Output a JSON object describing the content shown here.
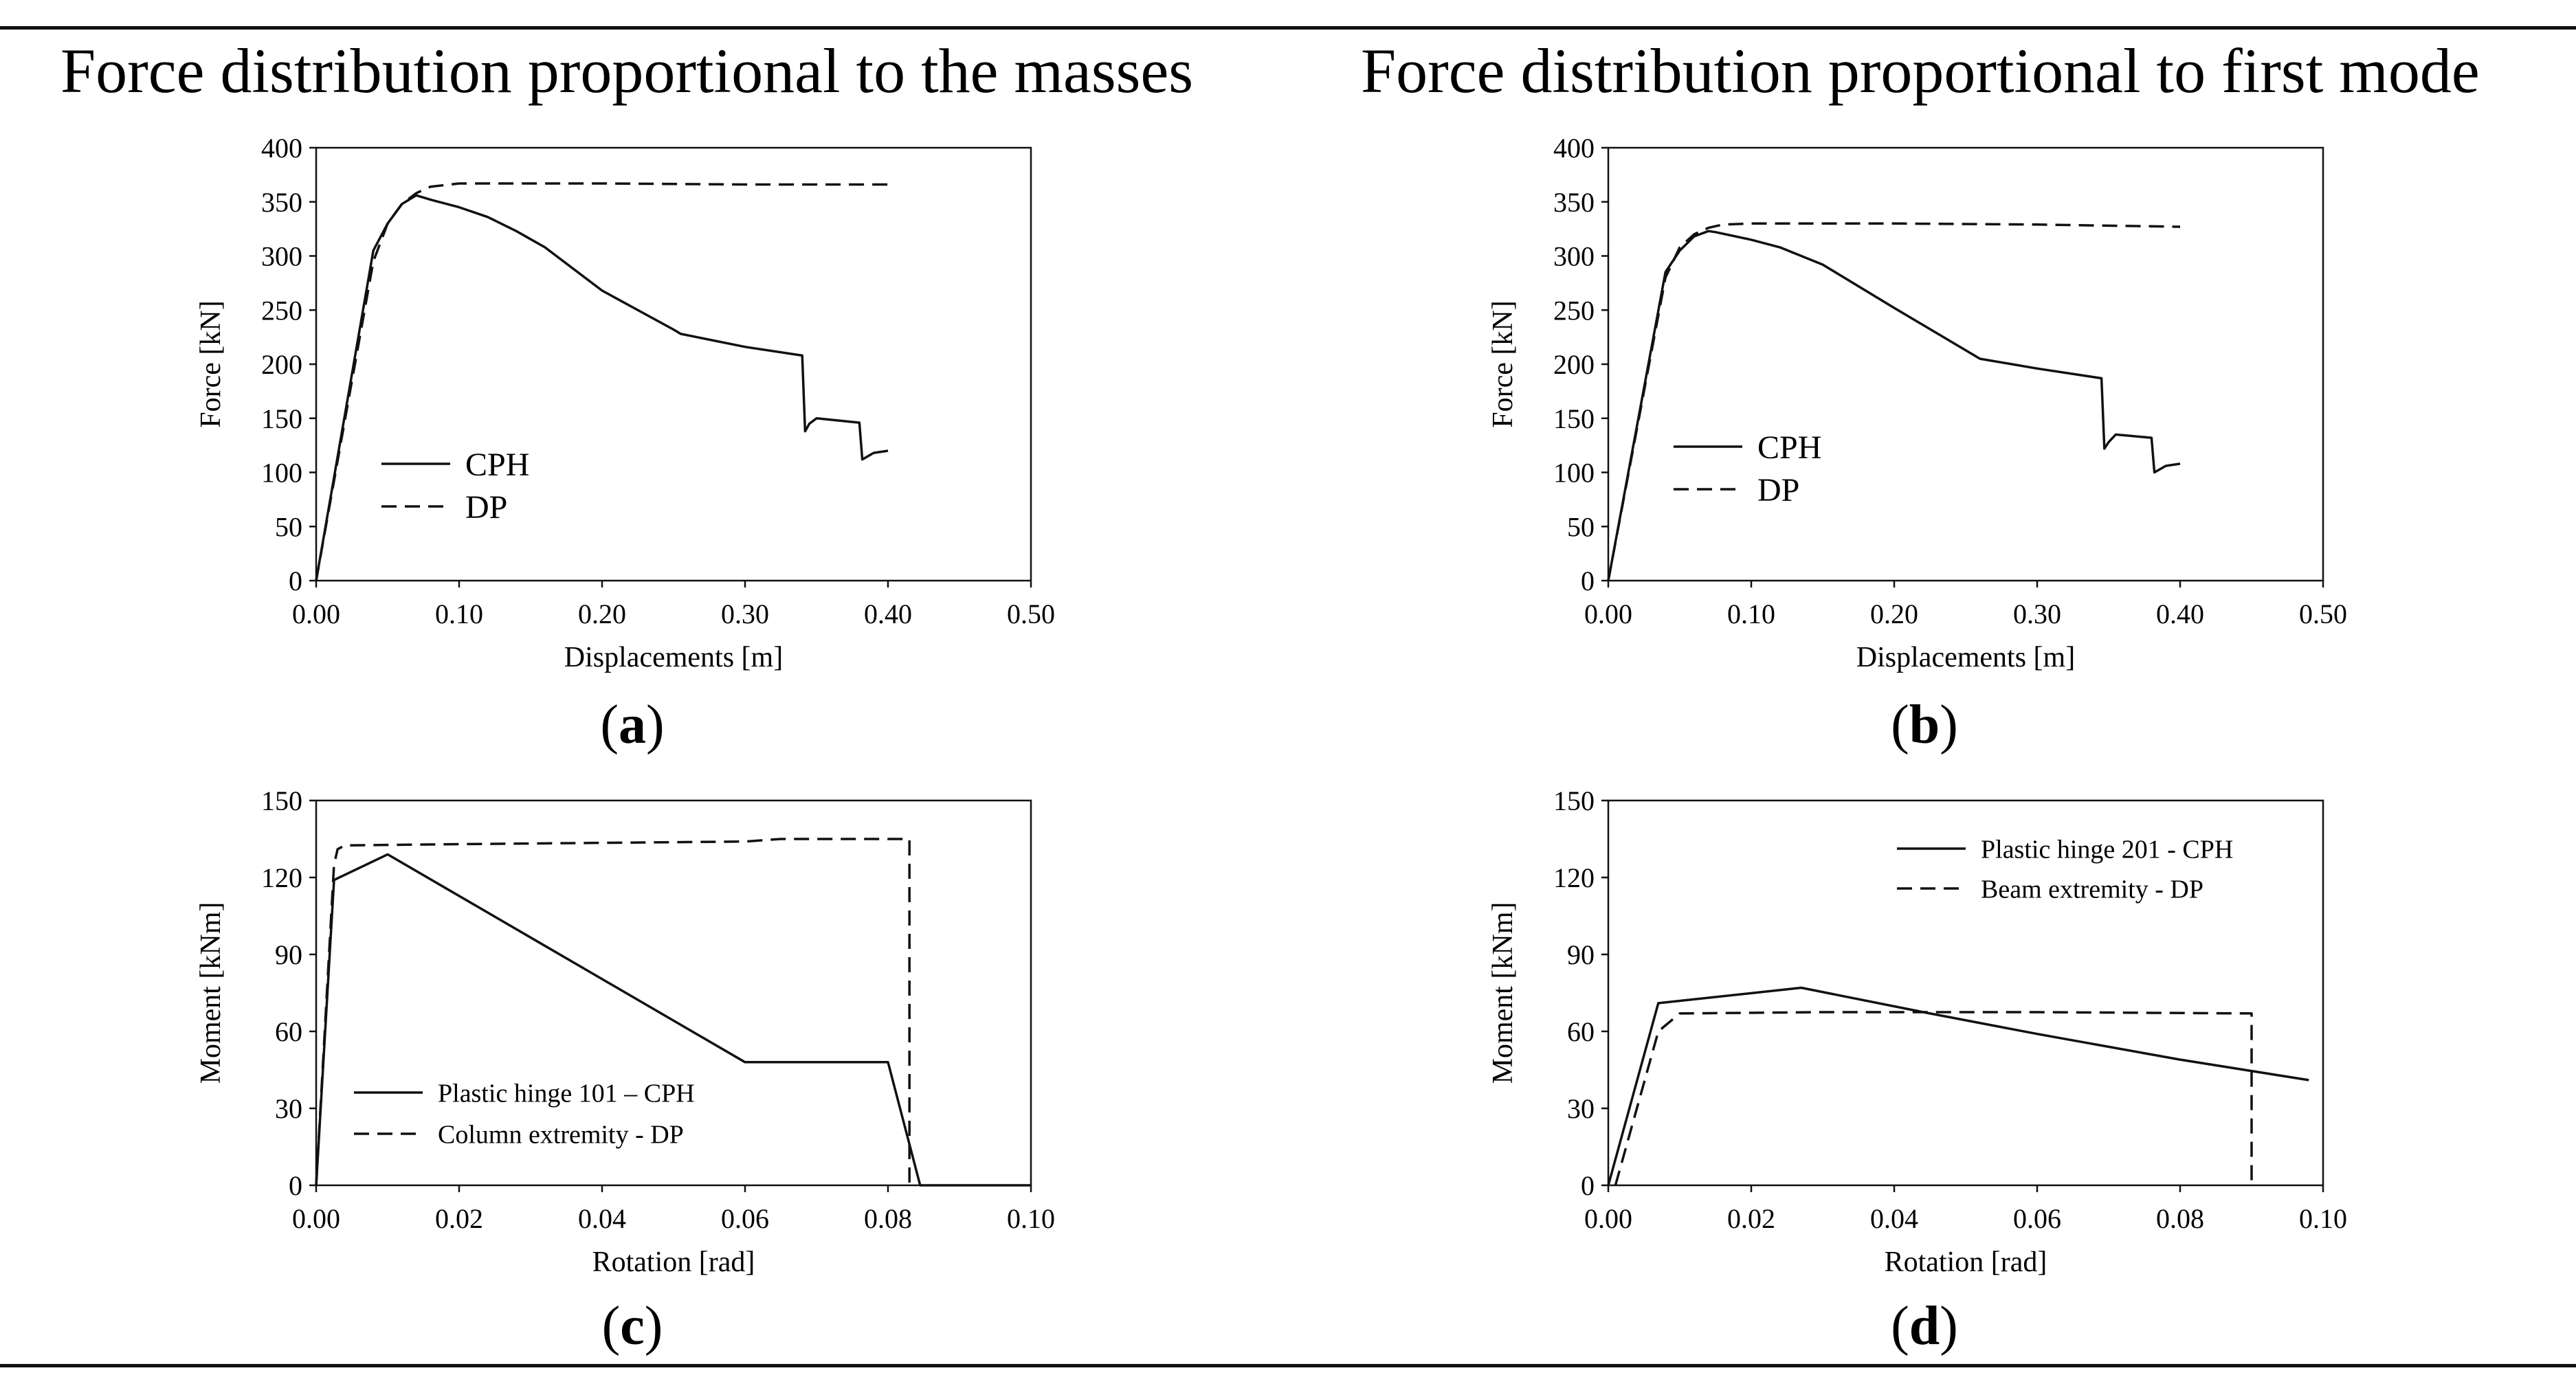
{
  "figure": {
    "heading_left": "Force distribution proportional to the masses",
    "heading_right": "Force distribution proportional to first mode",
    "captions": [
      {
        "paren_open": "(",
        "letter": "a",
        "paren_close": ")"
      },
      {
        "paren_open": "(",
        "letter": "b",
        "paren_close": ")"
      },
      {
        "paren_open": "(",
        "letter": "c",
        "paren_close": ")"
      },
      {
        "paren_open": "(",
        "letter": "d",
        "paren_close": ")"
      }
    ]
  },
  "chart_data": [
    {
      "type": "line",
      "panel": "a",
      "xlabel": "Displacements [m]",
      "ylabel": "Force [kN]",
      "xlim": [
        0,
        0.5
      ],
      "ylim": [
        0,
        400
      ],
      "xticks": [
        0,
        0.1,
        0.2,
        0.3,
        0.4,
        0.5
      ],
      "yticks": [
        0,
        50,
        100,
        150,
        200,
        250,
        300,
        350,
        400
      ],
      "xtick_labels": [
        "0.00",
        "0.10",
        "0.20",
        "0.30",
        "0.40",
        "0.50"
      ],
      "ytick_labels": [
        "0",
        "50",
        "100",
        "150",
        "200",
        "250",
        "300",
        "350",
        "400"
      ],
      "legend_position": "middle-left",
      "series": [
        {
          "name": "CPH",
          "style": "solid",
          "x": [
            0,
            0.04,
            0.05,
            0.06,
            0.07,
            0.08,
            0.1,
            0.12,
            0.14,
            0.16,
            0.2,
            0.25,
            0.255,
            0.3,
            0.34,
            0.342,
            0.345,
            0.35,
            0.38,
            0.382,
            0.39,
            0.4
          ],
          "y": [
            0,
            305,
            330,
            348,
            356,
            352,
            345,
            336,
            323,
            308,
            268,
            232,
            228,
            216,
            208,
            138,
            145,
            150,
            146,
            112,
            118,
            120
          ]
        },
        {
          "name": "DP",
          "style": "dashed",
          "x": [
            0,
            0.04,
            0.05,
            0.06,
            0.07,
            0.08,
            0.1,
            0.2,
            0.3,
            0.4
          ],
          "y": [
            0,
            295,
            330,
            348,
            358,
            364,
            367,
            367,
            366,
            366
          ]
        }
      ]
    },
    {
      "type": "line",
      "panel": "b",
      "xlabel": "Displacements [m]",
      "ylabel": "Force [kN]",
      "xlim": [
        0,
        0.5
      ],
      "ylim": [
        0,
        400
      ],
      "xticks": [
        0,
        0.1,
        0.2,
        0.3,
        0.4,
        0.5
      ],
      "yticks": [
        0,
        50,
        100,
        150,
        200,
        250,
        300,
        350,
        400
      ],
      "xtick_labels": [
        "0.00",
        "0.10",
        "0.20",
        "0.30",
        "0.40",
        "0.50"
      ],
      "ytick_labels": [
        "0",
        "50",
        "100",
        "150",
        "200",
        "250",
        "300",
        "350",
        "400"
      ],
      "legend_position": "middle-left",
      "series": [
        {
          "name": "CPH",
          "style": "solid",
          "x": [
            0,
            0.04,
            0.05,
            0.06,
            0.07,
            0.075,
            0.1,
            0.12,
            0.15,
            0.2,
            0.26,
            0.3,
            0.345,
            0.347,
            0.35,
            0.355,
            0.38,
            0.382,
            0.39,
            0.4
          ],
          "y": [
            0,
            285,
            305,
            318,
            323,
            322,
            315,
            308,
            292,
            252,
            205,
            196,
            187,
            122,
            128,
            135,
            132,
            100,
            106,
            108
          ]
        },
        {
          "name": "DP",
          "style": "dashed",
          "x": [
            0,
            0.04,
            0.05,
            0.06,
            0.07,
            0.08,
            0.1,
            0.2,
            0.3,
            0.4
          ],
          "y": [
            0,
            280,
            308,
            320,
            326,
            329,
            330,
            330,
            329,
            327
          ]
        }
      ]
    },
    {
      "type": "line",
      "panel": "c",
      "xlabel": "Rotation [rad]",
      "ylabel": "Moment [kNm]",
      "xlim": [
        0,
        0.1
      ],
      "ylim": [
        0,
        150
      ],
      "xticks": [
        0,
        0.02,
        0.04,
        0.06,
        0.08,
        0.1
      ],
      "yticks": [
        0,
        30,
        60,
        90,
        120,
        150
      ],
      "xtick_labels": [
        "0.00",
        "0.02",
        "0.04",
        "0.06",
        "0.08",
        "0.10"
      ],
      "ytick_labels": [
        "0",
        "30",
        "60",
        "90",
        "120",
        "150"
      ],
      "legend_position": "bottom-left",
      "series": [
        {
          "name": "Plastic hinge 101 – CPH",
          "style": "solid",
          "x": [
            0,
            0.0025,
            0.01,
            0.06,
            0.08,
            0.0845,
            0.1
          ],
          "y": [
            0,
            119,
            129,
            48,
            48,
            0,
            0
          ]
        },
        {
          "name": "Column extremity - DP",
          "style": "dashed",
          "x": [
            0,
            0.0025,
            0.003,
            0.004,
            0.02,
            0.04,
            0.06,
            0.065,
            0.08,
            0.083,
            0.083
          ],
          "y": [
            0,
            125,
            131,
            132.5,
            133,
            133.5,
            134,
            135,
            135,
            135,
            0
          ]
        }
      ]
    },
    {
      "type": "line",
      "panel": "d",
      "xlabel": "Rotation [rad]",
      "ylabel": "Moment [kNm]",
      "xlim": [
        0,
        0.1
      ],
      "ylim": [
        0,
        150
      ],
      "xticks": [
        0,
        0.02,
        0.04,
        0.06,
        0.08,
        0.1
      ],
      "yticks": [
        0,
        30,
        60,
        90,
        120,
        150
      ],
      "xtick_labels": [
        "0.00",
        "0.02",
        "0.04",
        "0.06",
        "0.08",
        "0.10"
      ],
      "ytick_labels": [
        "0",
        "30",
        "60",
        "90",
        "120",
        "150"
      ],
      "legend_position": "top-center",
      "series": [
        {
          "name": "Plastic hinge 201 - CPH",
          "style": "solid",
          "x": [
            0,
            0.007,
            0.027,
            0.045,
            0.06,
            0.08,
            0.098
          ],
          "y": [
            0,
            71,
            77,
            67,
            59,
            49,
            41
          ]
        },
        {
          "name": "Beam extremity - DP",
          "style": "dashed",
          "x": [
            0.001,
            0.007,
            0.01,
            0.03,
            0.06,
            0.09,
            0.09
          ],
          "y": [
            0,
            60,
            67,
            67.5,
            67.5,
            67,
            0
          ]
        }
      ]
    }
  ]
}
